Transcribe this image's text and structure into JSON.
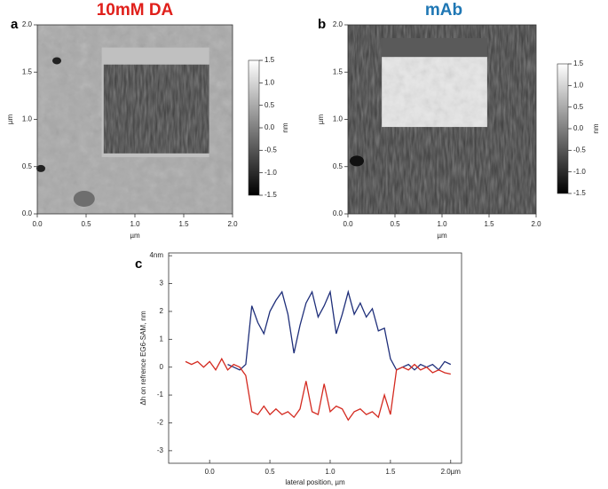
{
  "chart_data": [
    {
      "type": "image",
      "panel_label": "a",
      "title": "10mM DA",
      "title_color": "#e0201b",
      "xlabel": "µm",
      "ylabel": "µm",
      "colorbar_label": "nm",
      "xlim": [
        0,
        2
      ],
      "ylim": [
        0,
        2
      ],
      "xticks": [
        {
          "value": 0,
          "label": "0.0"
        },
        0.5,
        {
          "value": 1,
          "label": "1.0"
        },
        1.5,
        {
          "value": 2,
          "label": "2.0"
        }
      ],
      "yticks": [
        {
          "value": 0,
          "label": "0.0"
        },
        0.5,
        {
          "value": 1,
          "label": "1.0"
        },
        1.5,
        {
          "value": 2,
          "label": "2.0"
        }
      ],
      "clim": [
        -1.5,
        1.5
      ],
      "cticks": [
        1.5,
        {
          "value": 1,
          "label": "1.0"
        },
        0.5,
        {
          "value": 0,
          "label": "0.0"
        },
        -0.5,
        {
          "value": -1,
          "label": "-1.0"
        },
        -1.5
      ]
    },
    {
      "type": "image",
      "panel_label": "b",
      "title": "mAb",
      "title_color": "#1f77b4",
      "xlabel": "µm",
      "ylabel": "µm",
      "colorbar_label": "nm",
      "xlim": [
        0,
        2
      ],
      "ylim": [
        0,
        2
      ],
      "xticks": [
        {
          "value": 0,
          "label": "0.0"
        },
        0.5,
        {
          "value": 1,
          "label": "1.0"
        },
        1.5,
        {
          "value": 2,
          "label": "2.0"
        }
      ],
      "yticks": [
        {
          "value": 0,
          "label": "0.0"
        },
        0.5,
        {
          "value": 1,
          "label": "1.0"
        },
        1.5,
        {
          "value": 2,
          "label": "2.0"
        }
      ],
      "clim": [
        -1.5,
        1.5
      ],
      "cticks": [
        1.5,
        {
          "value": 1,
          "label": "1.0"
        },
        0.5,
        {
          "value": 0,
          "label": "0.0"
        },
        -0.5,
        {
          "value": -1,
          "label": "-1.0"
        },
        -1.5
      ]
    },
    {
      "type": "line",
      "panel_label": "c",
      "xlabel": "lateral position, µm",
      "ylabel": "Δh on refrence EG6-SAM, nm",
      "xlim": [
        -0.34,
        2.09
      ],
      "ylim": [
        -3.45,
        4.1
      ],
      "xticks": [
        {
          "value": 0,
          "label": "0.0"
        },
        0.5,
        {
          "value": 1,
          "label": "1.0"
        },
        1.5,
        {
          "value": 2,
          "label": "2.0µm"
        }
      ],
      "yticks": [
        {
          "value": 4,
          "label": "4nm"
        },
        3,
        2,
        1,
        0,
        -1,
        -2,
        -3
      ],
      "x": [
        -0.2,
        -0.15,
        -0.1,
        -0.05,
        0,
        0.05,
        0.1,
        0.15,
        0.2,
        0.25,
        0.3,
        0.35,
        0.4,
        0.45,
        0.5,
        0.55,
        0.6,
        0.65,
        0.7,
        0.75,
        0.8,
        0.85,
        0.9,
        0.95,
        1.0,
        1.05,
        1.1,
        1.15,
        1.2,
        1.25,
        1.3,
        1.35,
        1.4,
        1.45,
        1.5,
        1.55,
        1.6,
        1.65,
        1.7,
        1.75,
        1.8,
        1.85,
        1.9,
        1.95,
        2.0
      ],
      "series": [
        {
          "color": "#1f2f7a",
          "values": [
            null,
            null,
            null,
            null,
            null,
            null,
            null,
            0.1,
            0.0,
            -0.1,
            0.1,
            2.2,
            1.6,
            1.2,
            2.0,
            2.4,
            2.7,
            1.9,
            0.5,
            1.5,
            2.3,
            2.7,
            1.8,
            2.2,
            2.7,
            1.2,
            1.9,
            2.7,
            1.9,
            2.3,
            1.8,
            2.1,
            1.3,
            1.4,
            0.3,
            -0.1,
            0.0,
            0.1,
            -0.1,
            0.1,
            0.0,
            0.1,
            -0.1,
            0.2,
            0.1
          ]
        },
        {
          "color": "#d42a20",
          "values": [
            0.2,
            0.1,
            0.2,
            0.0,
            0.2,
            -0.1,
            0.3,
            -0.1,
            0.1,
            0.0,
            -0.3,
            -1.6,
            -1.7,
            -1.4,
            -1.7,
            -1.5,
            -1.7,
            -1.6,
            -1.8,
            -1.5,
            -0.5,
            -1.6,
            -1.7,
            -0.6,
            -1.6,
            -1.4,
            -1.5,
            -1.9,
            -1.6,
            -1.5,
            -1.7,
            -1.6,
            -1.8,
            -1.0,
            -1.7,
            -0.1,
            0.0,
            -0.1,
            0.1,
            -0.1,
            0.0,
            -0.2,
            -0.1,
            -0.2,
            -0.25
          ]
        }
      ]
    }
  ]
}
